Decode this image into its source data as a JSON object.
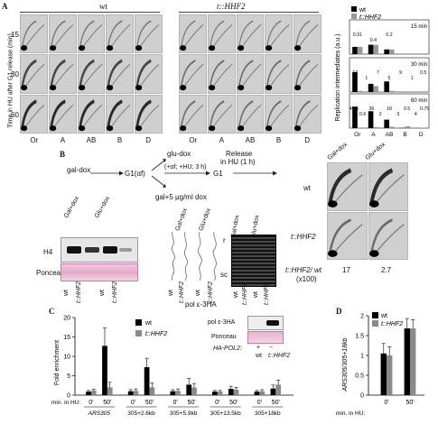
{
  "panelA": {
    "label": "A",
    "wt_header": "wt",
    "mut_header": "t::HHF2",
    "ylabel": "Time in HU after G1 release (min)",
    "time_labels": [
      "15",
      "30",
      "60"
    ],
    "col_labels": [
      "Or",
      "A",
      "AB",
      "B",
      "D"
    ],
    "chart": {
      "ylabel": "Replication intermediates (a.u.)",
      "legend": [
        "wt",
        "t::HHF2"
      ],
      "categories": [
        "Or",
        "A",
        "AB",
        "B",
        "D"
      ],
      "subpanels": [
        {
          "title": "15 min",
          "wt": [
            0.31,
            0.4,
            0.2,
            0,
            0
          ],
          "mut": [
            0.31,
            0.4,
            0.2,
            0,
            0
          ],
          "labels": [
            "0.31",
            "0.4",
            "0.2",
            "",
            ""
          ]
        },
        {
          "title": "30 min",
          "wt": [
            17,
            7,
            9,
            0,
            0
          ],
          "mut": [
            1,
            5,
            1,
            0.5,
            0
          ],
          "labels": [
            "17",
            "1",
            "7",
            "5",
            "9",
            "1",
            "0.5"
          ]
        },
        {
          "title": "60 min",
          "wt": [
            45.5,
            36,
            18,
            0.5,
            0
          ],
          "mut": [
            0.6,
            2,
            3,
            4,
            0.75
          ],
          "labels": [
            "45.5",
            "0.6",
            "36",
            "2",
            "18",
            "3",
            "0.5",
            "4",
            "0.75"
          ]
        }
      ]
    }
  },
  "panelB": {
    "label": "B",
    "gal_dox": "gal-dox",
    "g1_alpha": "G1(αf)",
    "glu_dox": "glu-dox",
    "gal5": "gal+5 μg/ml dox",
    "conditions": "(+αf; +HU; 3 h)",
    "g1": "G1",
    "release": "Release",
    "release_sub": "in HU (1 h)",
    "blot_headers": [
      "Gal+dox",
      "Glu+dox"
    ],
    "h4": "H4",
    "ponceau": "Ponceau",
    "lane_labels": [
      "wt",
      "t::HHF2",
      "wt",
      "t::HHF2"
    ],
    "gel_r": "r",
    "gel_sc": "sc",
    "gel_headers": [
      "Gal+dox",
      "Glu+dox"
    ],
    "twoD_headers": [
      "Gal+dox",
      "Glu+dox"
    ],
    "twoD_rows": [
      "wt",
      "t::HHF2"
    ],
    "ratio_label": "t::HHF2/ wt",
    "ratio_unit": "(x100)",
    "ratios": [
      "17",
      "2.7"
    ]
  },
  "panelC": {
    "label": "C",
    "title": "pol ε-3HA",
    "ylabel": "Fold enrichment",
    "legend": [
      "wt",
      "t::HHF2"
    ],
    "inset": {
      "pol": "pol ε-3HA",
      "ponceau": "Ponceau",
      "hap": "HA-POL2:",
      "plus": "+",
      "minus": "−",
      "wt": "wt",
      "mut": "t::HHF2"
    },
    "xlabel": "min. in HU:",
    "time_ticks": [
      "0'",
      "50'"
    ],
    "loci": [
      "ARS305",
      "305+2.6kb",
      "305+5.9kb",
      "305+13.5kb",
      "305+18kb"
    ],
    "yticks": [
      "0",
      "5",
      "10",
      "15",
      "20"
    ]
  },
  "panelD": {
    "label": "D",
    "ylabel": "ARS305/305+18kb",
    "legend": [
      "wt",
      "t::HHF2"
    ],
    "xlabel": "min. in HU:",
    "time_ticks": [
      "0'",
      "50'"
    ],
    "yticks": [
      "0",
      "0.5",
      "1",
      "1.5",
      "2"
    ]
  },
  "chart_data": [
    {
      "type": "bar",
      "title": "pol ε-3HA",
      "ylabel": "Fold enrichment",
      "ylim": [
        0,
        20
      ],
      "categories": [
        "ARS305 0'",
        "ARS305 50'",
        "305+2.6kb 0'",
        "305+2.6kb 50'",
        "305+5.9kb 0'",
        "305+5.9kb 50'",
        "305+13.5kb 0'",
        "305+13.5kb 50'",
        "305+18kb 0'",
        "305+18kb 50'"
      ],
      "series": [
        {
          "name": "wt",
          "values": [
            0.9,
            12.7,
            1.0,
            7.2,
            1.0,
            2.7,
            0.9,
            1.6,
            0.9,
            1.7
          ],
          "errors": [
            0.3,
            4.6,
            0.4,
            2.3,
            0.4,
            1.6,
            0.3,
            0.7,
            0.3,
            0.9
          ]
        },
        {
          "name": "t::HHF2",
          "values": [
            1.2,
            2.0,
            1.1,
            2.0,
            1.1,
            2.0,
            0.9,
            1.4,
            1.0,
            2.7
          ],
          "errors": [
            0.3,
            1.3,
            0.5,
            1.1,
            0.5,
            1.0,
            0.3,
            0.6,
            0.4,
            1.2
          ]
        }
      ],
      "grid": false,
      "legend": "top-right"
    },
    {
      "type": "bar",
      "ylabel": "ARS305/305+18kb",
      "ylim": [
        0,
        2
      ],
      "categories": [
        "0'",
        "50'"
      ],
      "series": [
        {
          "name": "wt",
          "values": [
            1.05,
            1.68
          ],
          "errors": [
            0.25,
            0.25
          ]
        },
        {
          "name": "t::HHF2",
          "values": [
            1.0,
            1.68
          ],
          "errors": [
            0.22,
            0.22
          ]
        }
      ],
      "grid": false,
      "legend": "top-left"
    },
    {
      "type": "bar",
      "title": "Replication intermediates",
      "ylabel": "Replication intermediates (a.u.)",
      "categories": [
        "Or",
        "A",
        "AB",
        "B",
        "D"
      ],
      "series": [
        {
          "name": "wt 30 min",
          "values": [
            17,
            7,
            9,
            0,
            0
          ]
        },
        {
          "name": "t::HHF2 30 min",
          "values": [
            1,
            5,
            1,
            0.5,
            0
          ]
        },
        {
          "name": "wt 60 min",
          "values": [
            45.5,
            36,
            18,
            0.5,
            0
          ]
        },
        {
          "name": "t::HHF2 60 min",
          "values": [
            0.6,
            2,
            3,
            4,
            0.75
          ]
        }
      ],
      "legend": "top-left"
    }
  ]
}
